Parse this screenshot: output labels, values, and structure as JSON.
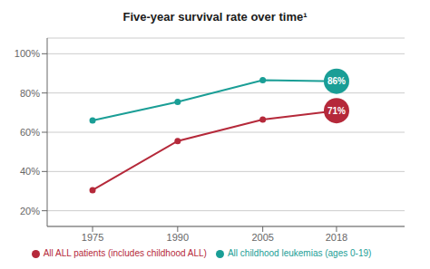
{
  "chart_data": {
    "type": "line",
    "title": "Five-year survival rate over time¹",
    "x": [
      1975,
      1990,
      2005,
      2018
    ],
    "series": [
      {
        "name": "All childhood leukemias (ages 0-19)",
        "color": "#1a9e96",
        "values": [
          0.66,
          0.755,
          0.865,
          0.86
        ],
        "value_labels": [
          null,
          null,
          null,
          "86%"
        ]
      },
      {
        "name": "All ALL patients (includes childhood ALL)",
        "color": "#b5293a",
        "values": [
          0.305,
          0.555,
          0.665,
          0.71
        ],
        "value_labels": [
          null,
          null,
          null,
          "71%"
        ]
      }
    ],
    "xlim": [
      1967,
      2030
    ],
    "xticks": [
      1975,
      1990,
      2005,
      2018
    ],
    "ylim": [
      0.12,
      1.08
    ],
    "yticks": [
      {
        "value": 0.2,
        "label": "20%"
      },
      {
        "value": 0.4,
        "label": "40%"
      },
      {
        "value": 0.6,
        "label": "60%"
      },
      {
        "value": 0.8,
        "label": "80%"
      },
      {
        "value": 1.0,
        "label": "100%"
      }
    ],
    "grid": true,
    "legend": "bottom",
    "marker": "circle"
  }
}
